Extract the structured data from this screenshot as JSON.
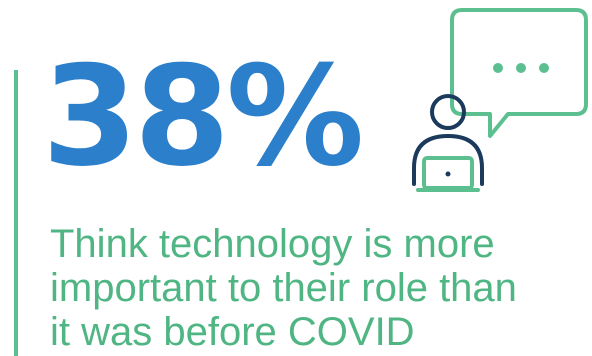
{
  "stat": {
    "value": "38%"
  },
  "caption": {
    "lines": [
      "Think technology is more",
      "important to their role than",
      "it was before COVID"
    ]
  },
  "icons": {
    "illustration": "person-at-laptop-with-speech-bubble-icon",
    "bubble": "speech-bubble-icon",
    "person": "person-icon",
    "laptop": "laptop-icon"
  },
  "colors": {
    "stat": "#2c7fcb",
    "caption": "#4fb583",
    "accent_bar": "#5cbf8f",
    "bubble": "#5cbf8f",
    "person_outline": "#1b3a5c",
    "laptop": "#5cbf8f"
  }
}
